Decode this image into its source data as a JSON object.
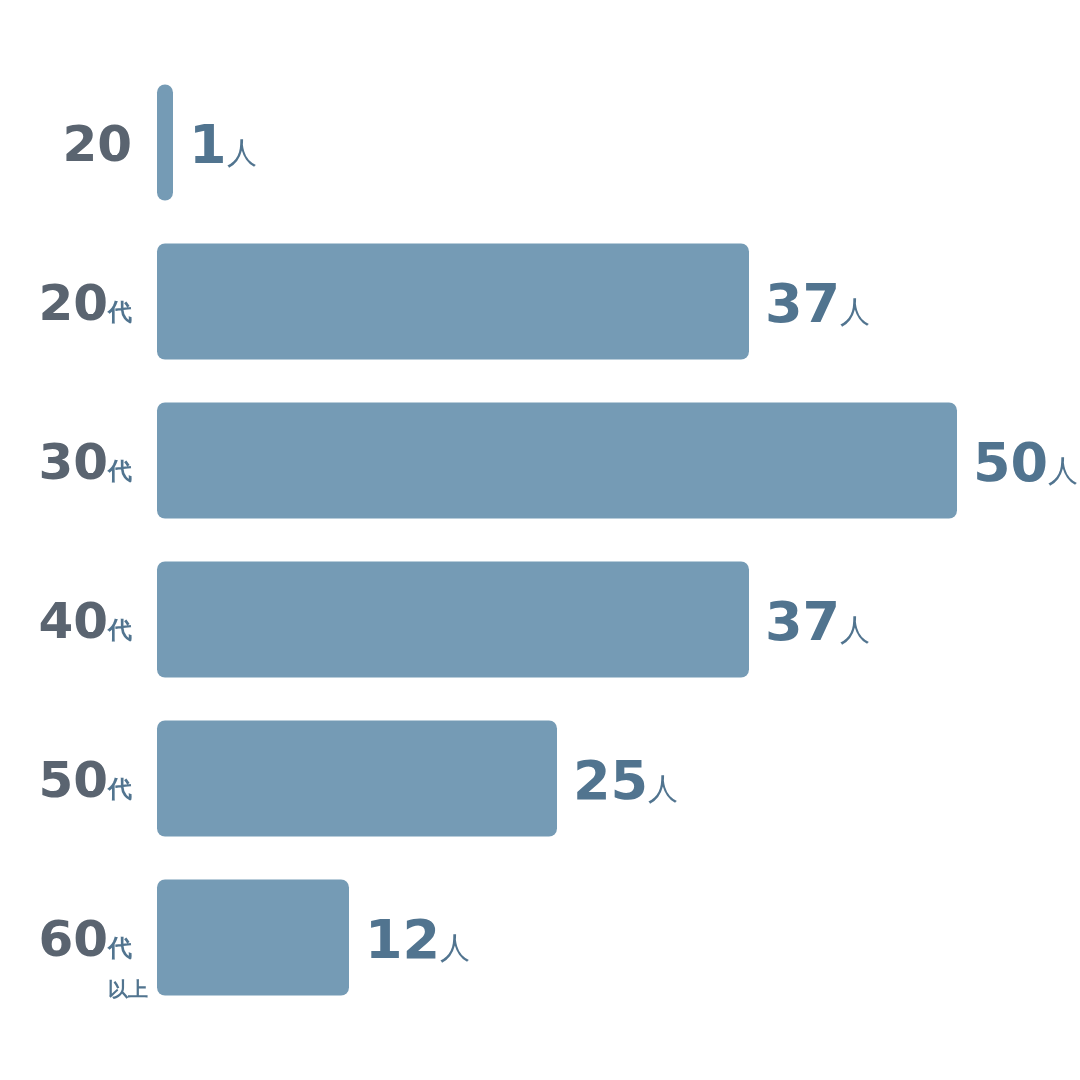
{
  "chart_data": {
    "type": "bar",
    "orientation": "horizontal",
    "categories": [
      "20",
      "20代",
      "30代",
      "40代",
      "50代",
      "60代以上"
    ],
    "values": [
      1,
      37,
      50,
      37,
      25,
      12
    ],
    "color": "#759bb5",
    "value_labels": [
      "1人",
      "37人",
      "50人",
      "37人",
      "25人",
      "12人"
    ],
    "xlim": [
      0,
      50
    ],
    "tick_labels": "y"
  }
}
